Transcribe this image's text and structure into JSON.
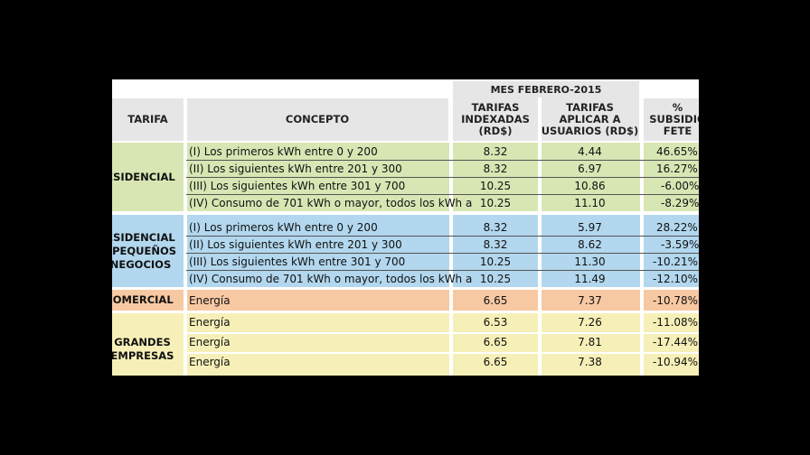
{
  "header": {
    "month": "MES FEBRERO-2015",
    "col_tarifa": "TARIFA",
    "col_concepto": "CONCEPTO",
    "col_indexadas": "TARIFAS\nINDEXADAS\n(RD$)",
    "col_aplicar": "TARIFAS\nAPLICAR A\nUSUARIOS (RD$)",
    "col_subsidio": "%\nSUBSIDIO\nFETE"
  },
  "groups": [
    {
      "tarifa": "ESIDENCIAL",
      "color": "#d8e6b4",
      "rows": [
        {
          "concepto": "(I) Los primeros kWh entre 0 y 200",
          "indexada": "8.32",
          "aplicar": "4.44",
          "subsidio": "46.65%"
        },
        {
          "concepto": "(II) Los siguientes kWh entre 201 y 300",
          "indexada": "8.32",
          "aplicar": "6.97",
          "subsidio": "16.27%"
        },
        {
          "concepto": "(III) Los siguientes kWh entre 301 y 700",
          "indexada": "10.25",
          "aplicar": "10.86",
          "subsidio": "-6.00%"
        },
        {
          "concepto": "(IV) Consumo de 701 kWh o mayor, todos los kWh a",
          "indexada": "10.25",
          "aplicar": "11.10",
          "subsidio": "-8.29%"
        }
      ]
    },
    {
      "tarifa": "ESIDENCIAL\n/ PEQUEÑOS\nNEGOCIOS",
      "color": "#b2d7ee",
      "rows": [
        {
          "concepto": "(I) Los primeros kWh entre 0 y 200",
          "indexada": "8.32",
          "aplicar": "5.97",
          "subsidio": "28.22%"
        },
        {
          "concepto": "(II) Los siguientes kWh entre 201 y 300",
          "indexada": "8.32",
          "aplicar": "8.62",
          "subsidio": "-3.59%"
        },
        {
          "concepto": "(III) Los siguientes kWh entre 301 y 700",
          "indexada": "10.25",
          "aplicar": "11.30",
          "subsidio": "-10.21%"
        },
        {
          "concepto": "(IV) Consumo de 701 kWh o mayor, todos los kWh a",
          "indexada": "10.25",
          "aplicar": "11.49",
          "subsidio": "-12.10%"
        }
      ]
    },
    {
      "tarifa": "COMERCIAL",
      "color": "#f7c9a3",
      "rows": [
        {
          "concepto": "Energía",
          "indexada": "6.65",
          "aplicar": "7.37",
          "subsidio": "-10.78%"
        }
      ]
    },
    {
      "tarifa": "GRANDES\nEMPRESAS",
      "color": "#f6f0b8",
      "rows": [
        {
          "concepto": "Energía",
          "indexada": "6.53",
          "aplicar": "7.26",
          "subsidio": "-11.08%"
        },
        {
          "concepto": "Energía",
          "indexada": "6.65",
          "aplicar": "7.81",
          "subsidio": "-17.44%"
        },
        {
          "concepto": "Energía",
          "indexada": "6.65",
          "aplicar": "7.38",
          "subsidio": "-10.94%"
        }
      ]
    }
  ]
}
